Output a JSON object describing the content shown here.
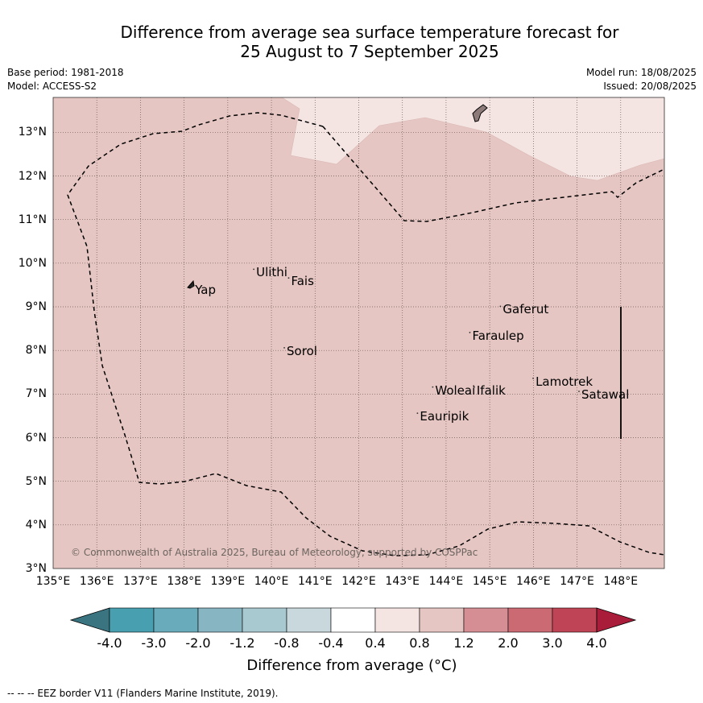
{
  "title": {
    "line1": "Difference from average sea surface temperature forecast for",
    "line2": "25 August to 7 September 2025"
  },
  "meta": {
    "base_period": "Base period: 1981-2018",
    "model": "Model: ACCESS-S2",
    "model_run": "Model run: 18/08/2025",
    "issued": "Issued: 20/08/2025"
  },
  "map": {
    "lon_range": [
      135,
      149
    ],
    "lat_range": [
      3,
      13.8
    ],
    "lat_ticks": [
      "13°N",
      "12°N",
      "11°N",
      "10°N",
      "9°N",
      "8°N",
      "7°N",
      "6°N",
      "5°N",
      "4°N",
      "3°N"
    ],
    "lon_ticks": [
      "135°E",
      "136°E",
      "137°E",
      "138°E",
      "139°E",
      "140°E",
      "141°E",
      "142°E",
      "143°E",
      "144°E",
      "145°E",
      "146°E",
      "147°E",
      "148°E"
    ],
    "background_fill_color": "#e6c6c2",
    "cool_region_color": "#f4e5e3",
    "places": [
      {
        "name": "Yap",
        "lon": 138.25,
        "lat": 9.35
      },
      {
        "name": "Ulithi",
        "lon": 139.65,
        "lat": 9.75
      },
      {
        "name": "Fais",
        "lon": 140.45,
        "lat": 9.55
      },
      {
        "name": "Sorol",
        "lon": 140.35,
        "lat": 7.95
      },
      {
        "name": "Gaferut",
        "lon": 145.3,
        "lat": 8.9
      },
      {
        "name": "Faraulep",
        "lon": 144.6,
        "lat": 8.3
      },
      {
        "name": "Lamotrek",
        "lon": 146.05,
        "lat": 7.25
      },
      {
        "name": "Woleai",
        "lon": 143.75,
        "lat": 7.05
      },
      {
        "name": "Ifalik",
        "lon": 144.7,
        "lat": 7.05
      },
      {
        "name": "Satawal",
        "lon": 147.1,
        "lat": 6.95
      },
      {
        "name": "Eauripik",
        "lon": 143.4,
        "lat": 6.45
      }
    ],
    "copyright": "© Commonwealth of Australia 2025, Bureau of Meteorology, supported by COSPPac"
  },
  "colorbar": {
    "ticks": [
      "-4.0",
      "-3.0",
      "-2.0",
      "-1.2",
      "-0.8",
      "-0.4",
      "0.4",
      "0.8",
      "1.2",
      "2.0",
      "3.0",
      "4.0"
    ],
    "colors": [
      "#3a7480",
      "#479fb0",
      "#69abbb",
      "#88b5c2",
      "#a9c9d0",
      "#c8d8dc",
      "#ffffff",
      "#f4e5e3",
      "#e6c6c2",
      "#d58f94",
      "#cb6a73",
      "#bf4556",
      "#a91c3a"
    ],
    "label": "Difference from average (°C)"
  },
  "footnote": "-- -- -- EEZ border V11 (Flanders Marine Institute, 2019)."
}
